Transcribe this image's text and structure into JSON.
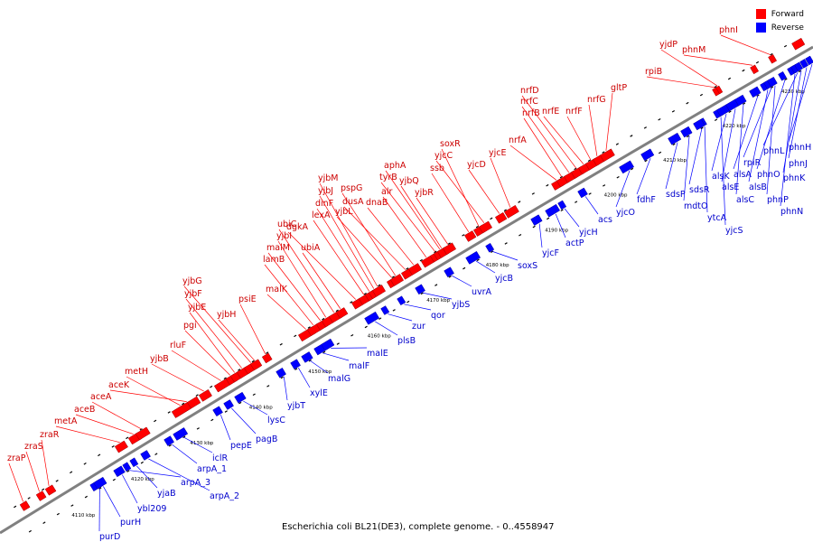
{
  "caption": "Escherichia coli BL21(DE3), complete genome. - 0..4558947",
  "legend": {
    "forward_label": "Forward",
    "reverse_label": "Reverse",
    "forward_color": "#ff0000",
    "reverse_color": "#0000ff"
  },
  "colors": {
    "forward": "#ff0000",
    "reverse": "#0000ff",
    "forward_text": "#cc0000",
    "reverse_text": "#0000cc",
    "track": "#808080",
    "leader": "#ff0000",
    "leader_rev": "#0000ff"
  },
  "ticks": [
    "4110 kbp",
    "4120 kbp",
    "4130 kbp",
    "4140 kbp",
    "4150 kbp",
    "4160 kbp",
    "4170 kbp",
    "4180 kbp",
    "4190 kbp",
    "4200 kbp",
    "4210 kbp",
    "4220 kbp",
    "4230 kbp"
  ],
  "forward_labels": [
    "zraP",
    "zraS",
    "zraR",
    "metA",
    "aceB",
    "aceA",
    "aceK",
    "metH",
    "yjbB",
    "rluF",
    "pgi",
    "yjbE",
    "yjbF",
    "yjbG",
    "yjbH",
    "psiE",
    "malK",
    "lamB",
    "malM",
    "yjbI",
    "ubiC",
    "ubiA",
    "dgkA",
    "lexA",
    "dinF",
    "yjbJ",
    "yjbM",
    "yjbL",
    "pspG",
    "dusA",
    "dnaB",
    "alr",
    "tyrB",
    "aphA",
    "yjbQ",
    "yjbR",
    "ssb",
    "soxR",
    "yjcC",
    "yjcD",
    "yjcE",
    "nrfA",
    "nrfB",
    "nrfC",
    "nrfD",
    "nrfE",
    "nrfF",
    "nrfG",
    "gltP",
    "rpiB",
    "yjdP",
    "phnM",
    "phnI"
  ],
  "reverse_labels": [
    "purD",
    "purH",
    "ybl209",
    "yjaB",
    "arpA_3",
    "arpA_2",
    "arpA_1",
    "iclR",
    "pepE",
    "pagB",
    "lysC",
    "yjbT",
    "xylE",
    "malG",
    "malF",
    "malE",
    "plsB",
    "zur",
    "qor",
    "yjbS",
    "uvrA",
    "yjcB",
    "soxS",
    "yjcF",
    "actP",
    "yjcH",
    "acs",
    "yjcO",
    "fdhF",
    "sdsP",
    "mdtO",
    "ytcA",
    "sdsR",
    "yjcS",
    "alsK",
    "alsE",
    "alsC",
    "alsA",
    "alsB",
    "rpiR",
    "phnO",
    "phnP",
    "phnN",
    "phnL",
    "phnK",
    "phnJ",
    "phnH"
  ]
}
